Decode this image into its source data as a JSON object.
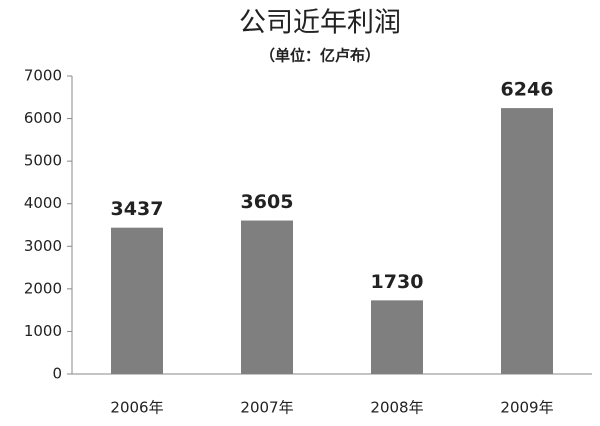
{
  "chart_data": {
    "type": "bar",
    "title": "公司近年利润",
    "subtitle": "（单位：亿卢布）",
    "categories": [
      "2006年",
      "2007年",
      "2008年",
      "2009年"
    ],
    "values": [
      3437,
      3605,
      1730,
      6246
    ],
    "color": "#7f7f7f",
    "ylim": [
      0,
      7000
    ],
    "yticks": [
      0,
      1000,
      2000,
      3000,
      4000,
      5000,
      6000,
      7000
    ],
    "grid": false
  }
}
